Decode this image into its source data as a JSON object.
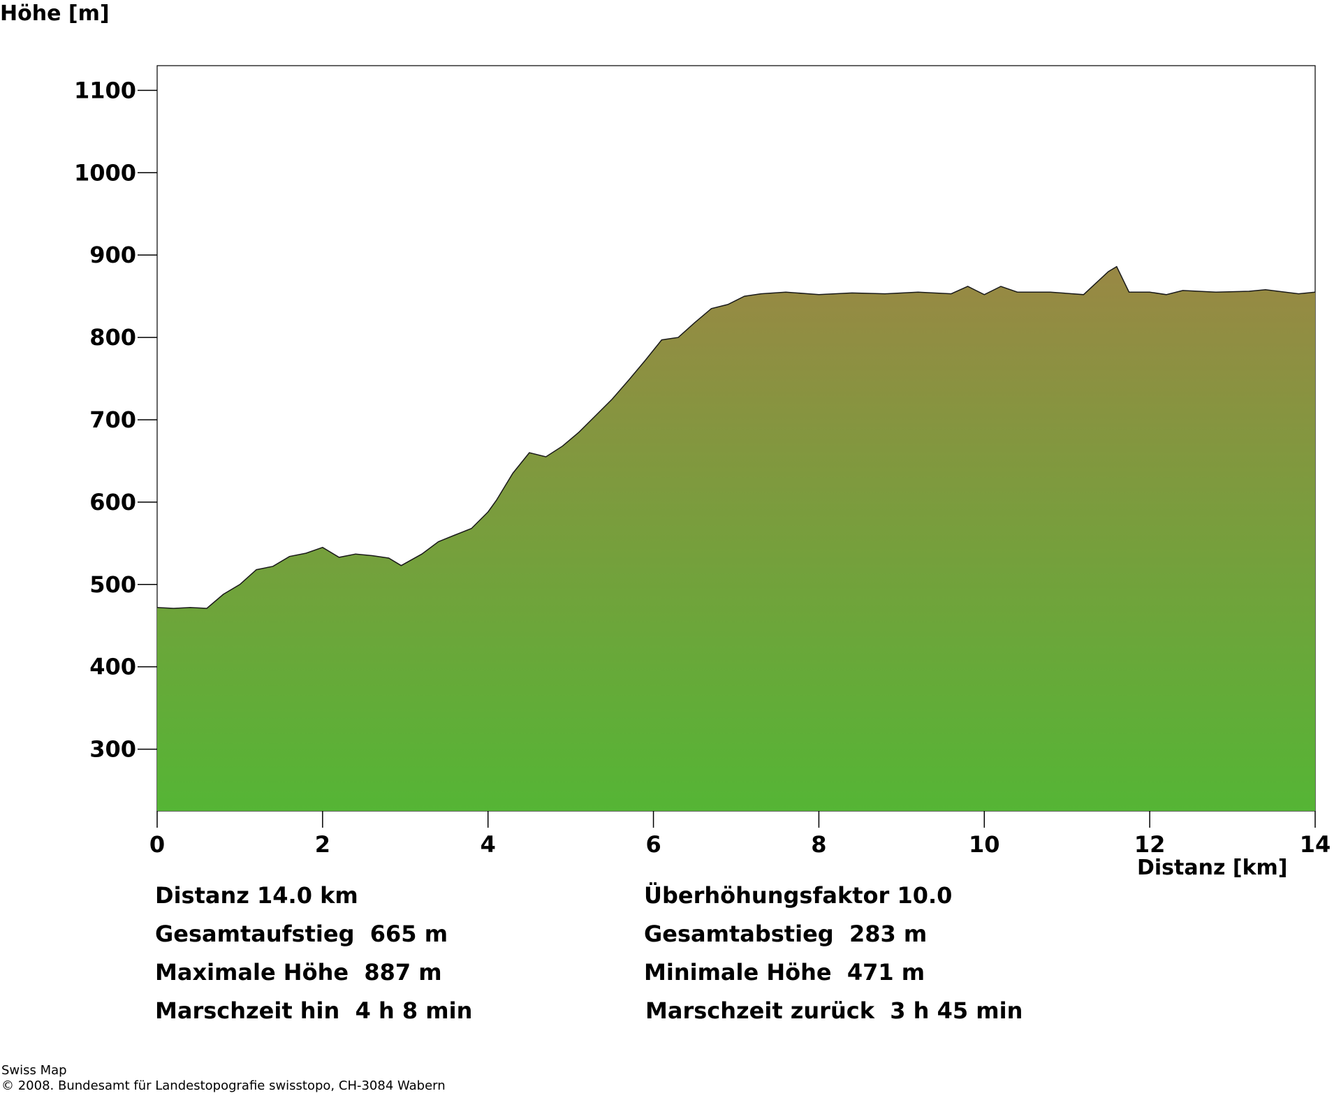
{
  "chart_data": {
    "type": "area",
    "ylabel": "Höhe [m]",
    "xlabel": "Distanz [km]",
    "xlim": [
      0,
      14
    ],
    "ylim": [
      225,
      1130
    ],
    "xticks": [
      "0",
      "2",
      "4",
      "6",
      "8",
      "10",
      "12",
      "14"
    ],
    "yticks": [
      "300",
      "400",
      "500",
      "600",
      "700",
      "800",
      "900",
      "1000",
      "1100"
    ],
    "grid": false,
    "fill_gradient": {
      "top": "#998844",
      "bottom": "#55b535"
    },
    "x": [
      0,
      0.2,
      0.4,
      0.6,
      0.8,
      1.0,
      1.2,
      1.4,
      1.6,
      1.8,
      2.0,
      2.2,
      2.4,
      2.6,
      2.8,
      2.95,
      3.2,
      3.4,
      3.6,
      3.8,
      4.0,
      4.1,
      4.3,
      4.5,
      4.7,
      4.9,
      5.1,
      5.3,
      5.5,
      5.7,
      5.9,
      6.1,
      6.3,
      6.5,
      6.7,
      6.9,
      7.1,
      7.3,
      7.6,
      8.0,
      8.4,
      8.8,
      9.2,
      9.6,
      9.8,
      10.0,
      10.2,
      10.4,
      10.8,
      11.2,
      11.5,
      11.6,
      11.75,
      12.0,
      12.2,
      12.4,
      12.8,
      13.2,
      13.4,
      13.8,
      14.0
    ],
    "values": [
      472,
      471,
      472,
      471,
      488,
      500,
      518,
      522,
      534,
      538,
      545,
      533,
      537,
      535,
      532,
      523,
      537,
      552,
      560,
      568,
      588,
      602,
      635,
      660,
      655,
      668,
      685,
      705,
      725,
      748,
      772,
      797,
      800,
      818,
      835,
      840,
      850,
      853,
      855,
      852,
      854,
      853,
      855,
      853,
      862,
      852,
      862,
      855,
      855,
      852,
      880,
      886,
      855,
      855,
      852,
      857,
      855,
      856,
      858,
      853,
      855
    ]
  },
  "stats": {
    "distanz": "Distanz 14.0 km",
    "ueberhoehung": "Überhöhungsfaktor 10.0",
    "aufstieg": "Gesamtaufstieg  665 m",
    "abstieg": "Gesamtabstieg  283 m",
    "max_hoehe": "Maximale Höhe  887 m",
    "min_hoehe": "Minimale Höhe  471 m",
    "zeit_hin": "Marschzeit hin  4 h 8 min",
    "zeit_zurueck": "Marschzeit zurück  3 h 45 min"
  },
  "credits": {
    "line1": "Swiss Map",
    "line2": "© 2008. Bundesamt für Landestopografie swisstopo, CH-3084 Wabern"
  }
}
